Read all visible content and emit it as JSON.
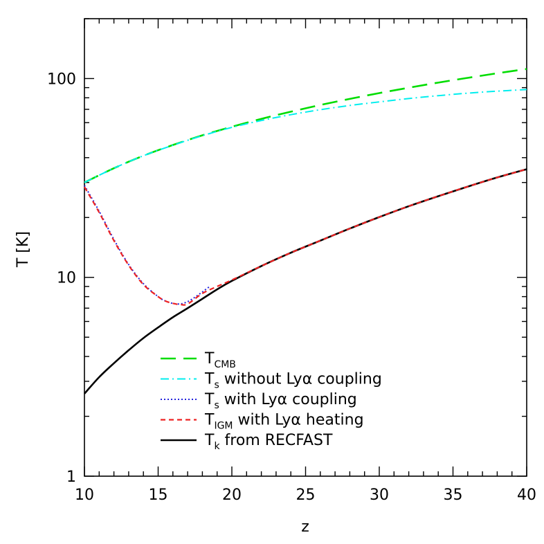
{
  "chart_data": {
    "type": "line",
    "title": "",
    "xlabel": "z",
    "ylabel": "T [K]",
    "xlim": [
      10,
      40
    ],
    "ylim": [
      1,
      200
    ],
    "yscale": "log",
    "x_ticks": [
      "10",
      "15",
      "20",
      "25",
      "30",
      "35",
      "40"
    ],
    "y_ticks": [
      "1",
      "10",
      "100"
    ],
    "grid": false,
    "legend_position": "bottom-left",
    "series": [
      {
        "name": "T_CMB",
        "legend_main": "T",
        "legend_sub": "CMB",
        "legend_rest": "",
        "color": "#00dd00",
        "dash": "long-dash",
        "x": [
          10,
          12,
          14,
          16,
          18,
          20,
          22,
          24,
          26,
          28,
          30,
          32,
          34,
          36,
          38,
          40
        ],
        "y": [
          30.0,
          35.4,
          40.9,
          46.3,
          51.8,
          57.2,
          62.7,
          68.1,
          73.6,
          79.0,
          84.5,
          89.9,
          95.4,
          100.8,
          106.3,
          111.7
        ]
      },
      {
        "name": "T_s without Lyα coupling",
        "legend_main": "T",
        "legend_sub": "s",
        "legend_rest": " without Lyα coupling",
        "color": "#00eeee",
        "dash": "dash-dot",
        "x": [
          10,
          12,
          14,
          16,
          18,
          20,
          22,
          24,
          26,
          28,
          30,
          32,
          34,
          36,
          38,
          40
        ],
        "y": [
          30.0,
          35.4,
          40.9,
          46.2,
          51.6,
          56.8,
          61.5,
          65.8,
          69.7,
          73.2,
          76.3,
          79.3,
          82.0,
          84.4,
          86.4,
          88.0
        ]
      },
      {
        "name": "T_s with Lyα coupling",
        "legend_main": "T",
        "legend_sub": "s",
        "legend_rest": " with Lyα coupling",
        "color": "#2222dd",
        "dash": "dotted",
        "x": [
          10,
          11,
          12,
          13,
          14,
          15,
          15.5,
          16,
          16.5,
          17,
          17.5,
          18,
          18.5
        ],
        "y": [
          29.0,
          21.5,
          15.5,
          11.6,
          9.3,
          8.0,
          7.6,
          7.4,
          7.35,
          7.55,
          7.95,
          8.45,
          9.0
        ]
      },
      {
        "name": "T_IGM with Lyα heating",
        "legend_main": "T",
        "legend_sub": "IGM",
        "legend_rest": " with Lyα heating",
        "color": "#ee2222",
        "dash": "short-dash",
        "x": [
          10,
          11,
          12,
          13,
          14,
          15,
          15.5,
          16,
          16.5,
          17,
          18,
          19,
          20,
          22,
          24,
          26,
          28,
          30,
          32,
          34,
          36,
          38,
          40
        ],
        "y": [
          28.5,
          21.2,
          15.3,
          11.5,
          9.2,
          8.0,
          7.6,
          7.4,
          7.3,
          7.35,
          8.3,
          9.0,
          9.7,
          11.4,
          13.3,
          15.3,
          17.6,
          20.1,
          22.8,
          25.6,
          28.6,
          31.8,
          35.0
        ]
      },
      {
        "name": "T_k from RECFAST",
        "legend_main": "T",
        "legend_sub": "k",
        "legend_rest": " from RECFAST",
        "color": "#000000",
        "dash": "solid",
        "x": [
          10,
          11,
          12,
          13,
          14,
          15,
          16,
          17,
          18,
          19,
          20,
          22,
          24,
          26,
          28,
          30,
          32,
          34,
          36,
          38,
          40
        ],
        "y": [
          2.6,
          3.15,
          3.7,
          4.3,
          4.95,
          5.6,
          6.3,
          7.0,
          7.8,
          8.7,
          9.6,
          11.4,
          13.3,
          15.3,
          17.6,
          20.1,
          22.8,
          25.6,
          28.6,
          31.8,
          35.0
        ]
      }
    ]
  }
}
